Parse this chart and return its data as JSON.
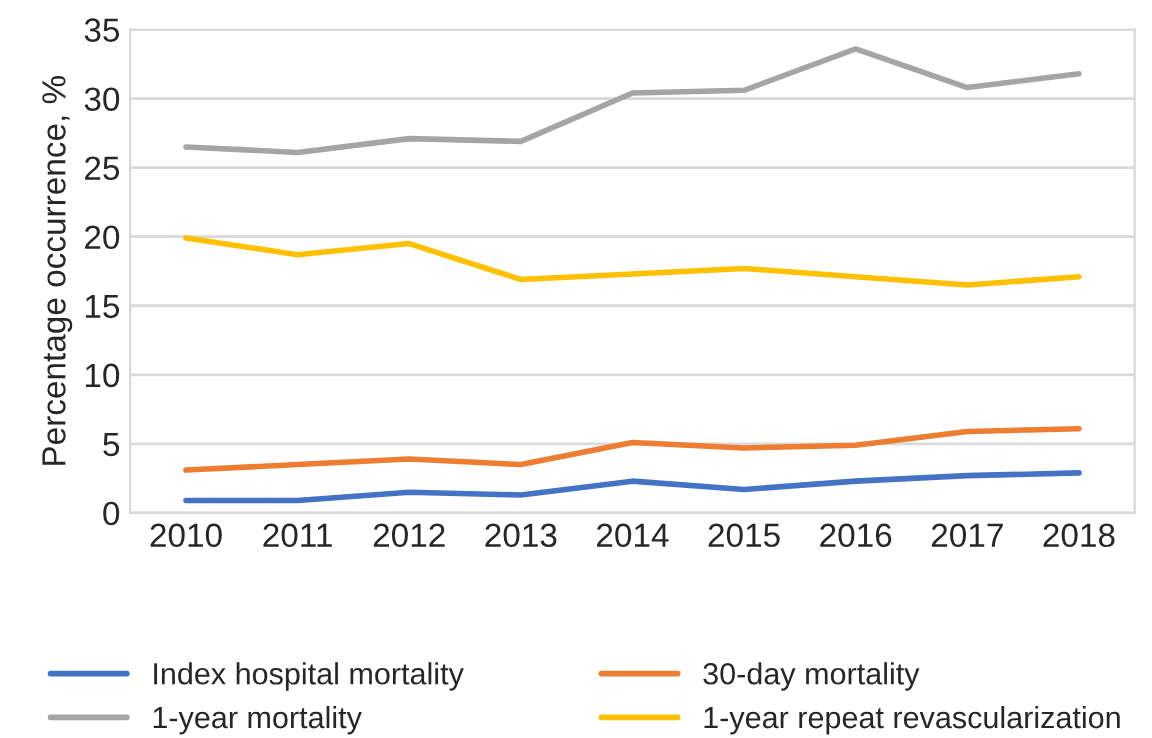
{
  "chart_data": {
    "type": "line",
    "ylabel": "Percentage occurrence, %",
    "categories": [
      "2010",
      "2011",
      "2012",
      "2013",
      "2014",
      "2015",
      "2016",
      "2017",
      "2018"
    ],
    "series": [
      {
        "name": "Index hospital mortality",
        "color": "#4472c4",
        "values": [
          0.9,
          0.9,
          1.5,
          1.3,
          2.3,
          1.7,
          2.3,
          2.7,
          2.9
        ]
      },
      {
        "name": "30-day mortality",
        "color": "#ed7d31",
        "values": [
          3.1,
          3.5,
          3.9,
          3.5,
          5.1,
          4.7,
          4.9,
          5.9,
          6.1
        ]
      },
      {
        "name": "1-year mortality",
        "color": "#a5a5a5",
        "values": [
          26.5,
          26.1,
          27.1,
          26.9,
          30.4,
          30.6,
          33.6,
          30.8,
          31.8
        ]
      },
      {
        "name": "1-year repeat revascularization",
        "color": "#ffc000",
        "values": [
          19.9,
          18.7,
          19.5,
          16.9,
          17.3,
          17.7,
          17.1,
          16.5,
          17.1
        ]
      }
    ],
    "ylim": [
      0,
      35
    ],
    "yticks": [
      0,
      5,
      10,
      15,
      20,
      25,
      30,
      35
    ],
    "grid": "y",
    "legend": "bottom",
    "line_style": "solid",
    "marker": "none"
  }
}
